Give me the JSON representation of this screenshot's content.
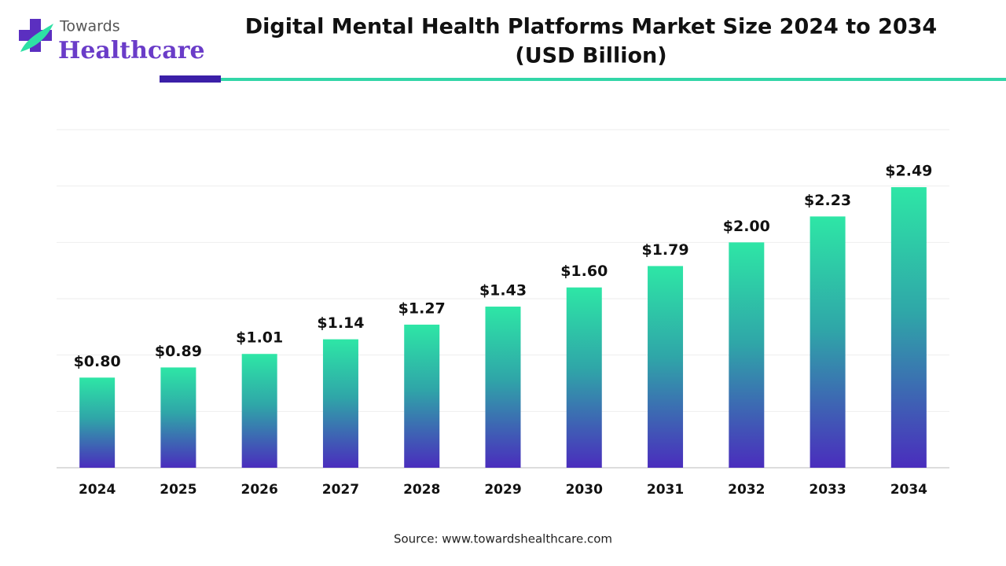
{
  "logo": {
    "line1": "Towards",
    "line2": "Healthcare"
  },
  "chart_data": {
    "type": "bar",
    "title": "Digital Mental Health Platforms Market Size 2024 to 2034",
    "subtitle": "(USD Billion)",
    "categories": [
      "2024",
      "2025",
      "2026",
      "2027",
      "2028",
      "2029",
      "2030",
      "2031",
      "2032",
      "2033",
      "2034"
    ],
    "values": [
      0.8,
      0.89,
      1.01,
      1.14,
      1.27,
      1.43,
      1.6,
      1.79,
      2.0,
      2.23,
      2.49
    ],
    "value_labels": [
      "$0.80",
      "$0.89",
      "$1.01",
      "$1.14",
      "$1.27",
      "$1.43",
      "$1.60",
      "$1.79",
      "$2.00",
      "$2.23",
      "$2.49"
    ],
    "color": [
      "#2ee6a6",
      "#4a2dbd"
    ],
    "ylim": [
      0,
      3
    ],
    "yticks": [
      0,
      0.5,
      1,
      1.5,
      2,
      2.5,
      3
    ],
    "grid": true,
    "source": "Source: www.towardshealthcare.com"
  }
}
